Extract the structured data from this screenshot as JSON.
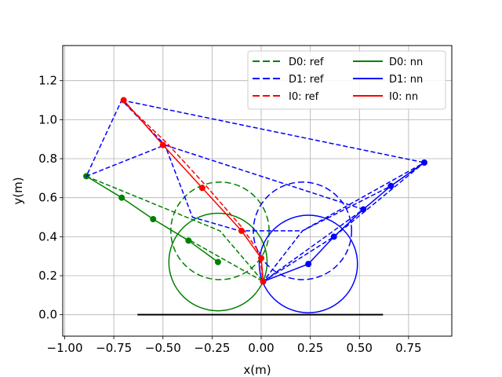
{
  "chart_data": {
    "type": "line",
    "title": "",
    "xlabel": "x(m)",
    "ylabel": "y(m)",
    "xlim": [
      -1.01,
      0.97
    ],
    "ylim": [
      -0.11,
      1.38
    ],
    "grid": true,
    "legend_placement": "top-right",
    "legend_columns": 2,
    "x_ticks": [
      -1.0,
      -0.75,
      -0.5,
      -0.25,
      0.0,
      0.25,
      0.5,
      0.75
    ],
    "x_tick_labels": [
      "−1.00",
      "−0.75",
      "−0.50",
      "−0.25",
      "0.00",
      "0.25",
      "0.50",
      "0.75"
    ],
    "y_ticks": [
      0.0,
      0.2,
      0.4,
      0.6,
      0.8,
      1.0,
      1.2
    ],
    "y_tick_labels": [
      "0.0",
      "0.2",
      "0.4",
      "0.6",
      "0.8",
      "1.0",
      "1.2"
    ],
    "ground_line": {
      "x": [
        -0.63,
        0.62
      ],
      "y": [
        0.0,
        0.0
      ],
      "color": "#000000"
    },
    "series": [
      {
        "name": "D0: ref",
        "color": "#008000",
        "dashed": true,
        "markers": false,
        "x": [
          -0.89,
          -0.21,
          0.01,
          -0.36
        ],
        "y": [
          0.71,
          0.43,
          0.17,
          0.38
        ]
      },
      {
        "name": "D0: nn",
        "color": "#008000",
        "dashed": false,
        "markers": true,
        "x": [
          -0.89,
          -0.71,
          -0.55,
          -0.37,
          -0.22
        ],
        "y": [
          0.71,
          0.6,
          0.49,
          0.38,
          0.27
        ]
      },
      {
        "name": "D1: ref",
        "color": "#0000ff",
        "dashed": true,
        "markers": false,
        "x": [
          -0.71,
          0.83,
          0.66,
          0.21,
          -0.11,
          -0.35,
          -0.49,
          -0.71,
          -0.89,
          -0.49,
          0.52,
          0.01,
          0.37,
          0.83,
          0.21,
          0.01
        ],
        "y": [
          1.1,
          0.78,
          0.66,
          0.43,
          0.43,
          0.5,
          0.87,
          1.1,
          0.71,
          0.87,
          0.54,
          0.17,
          0.4,
          0.78,
          0.43,
          0.17
        ]
      },
      {
        "name": "D1: nn",
        "color": "#0000ff",
        "dashed": false,
        "markers": true,
        "x": [
          0.01,
          0.24,
          0.37,
          0.52,
          0.66,
          0.83
        ],
        "y": [
          0.17,
          0.26,
          0.4,
          0.54,
          0.66,
          0.78
        ]
      },
      {
        "name": "I0: ref",
        "color": "#ff0000",
        "dashed": true,
        "markers": false,
        "x": [
          -0.71,
          -0.48,
          -0.28,
          -0.1,
          -0.01,
          0.01
        ],
        "y": [
          1.1,
          0.88,
          0.66,
          0.45,
          0.32,
          0.17
        ]
      },
      {
        "name": "I0: nn",
        "color": "#ff0000",
        "dashed": false,
        "markers": true,
        "x": [
          -0.7,
          -0.5,
          -0.3,
          -0.1,
          0.0,
          0.01
        ],
        "y": [
          1.1,
          0.87,
          0.65,
          0.43,
          0.29,
          0.17
        ]
      }
    ],
    "circles": [
      {
        "cx": -0.22,
        "cy": 0.27,
        "r": 0.25,
        "color": "#008000",
        "dashed": false
      },
      {
        "cx": -0.21,
        "cy": 0.43,
        "r": 0.25,
        "color": "#008000",
        "dashed": true
      },
      {
        "cx": 0.24,
        "cy": 0.26,
        "r": 0.25,
        "color": "#0000ff",
        "dashed": false
      },
      {
        "cx": 0.21,
        "cy": 0.43,
        "r": 0.25,
        "color": "#0000ff",
        "dashed": true
      }
    ],
    "legend": [
      {
        "label": "D0: ref",
        "color": "#008000",
        "dashed": true
      },
      {
        "label": "D1: ref",
        "color": "#0000ff",
        "dashed": true
      },
      {
        "label": "I0: ref",
        "color": "#ff0000",
        "dashed": true
      },
      {
        "label": "D0: nn",
        "color": "#008000",
        "dashed": false
      },
      {
        "label": "D1: nn",
        "color": "#0000ff",
        "dashed": false
      },
      {
        "label": "I0: nn",
        "color": "#ff0000",
        "dashed": false
      }
    ]
  }
}
